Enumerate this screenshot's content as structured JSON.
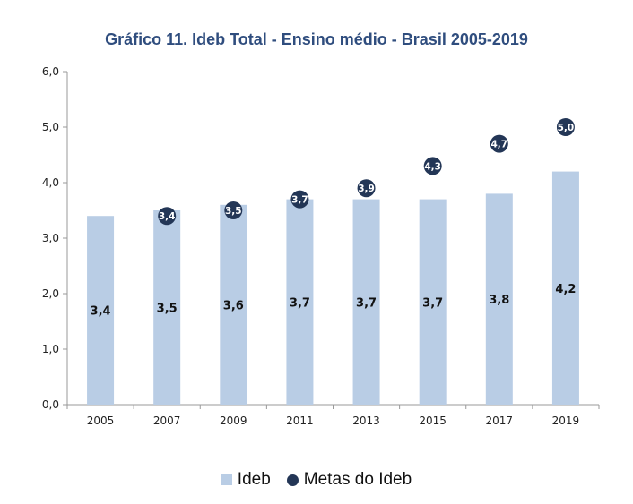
{
  "colors": {
    "bar": "#b9cde5",
    "target_dot": "#233656",
    "title": "#2f4d7e",
    "axis": "#999999",
    "grid": "#d9d9d9"
  },
  "chart_data": {
    "type": "bar",
    "title": "Gráfico 11. Ideb Total - Ensino médio - Brasil 2005-2019",
    "categories": [
      "2005",
      "2007",
      "2009",
      "2011",
      "2013",
      "2015",
      "2017",
      "2019"
    ],
    "series": [
      {
        "name": "Ideb",
        "kind": "bar",
        "values": [
          3.4,
          3.5,
          3.6,
          3.7,
          3.7,
          3.7,
          3.8,
          4.2
        ],
        "labels": [
          "3,4",
          "3,5",
          "3,6",
          "3,7",
          "3,7",
          "3,7",
          "3,8",
          "4,2"
        ]
      },
      {
        "name": "Metas do Ideb",
        "kind": "marker",
        "values": [
          null,
          3.4,
          3.5,
          3.7,
          3.9,
          4.3,
          4.7,
          5.0
        ],
        "labels": [
          null,
          "3,4",
          "3,5",
          "3,7",
          "3,9",
          "4,3",
          "4,7",
          "5,0"
        ]
      }
    ],
    "ylim": [
      0,
      6
    ],
    "yticks": [
      0,
      1,
      2,
      3,
      4,
      5,
      6
    ],
    "ytick_labels": [
      "0,0",
      "1,0",
      "2,0",
      "3,0",
      "4,0",
      "5,0",
      "6,0"
    ],
    "grid": false,
    "legend": "bottom"
  },
  "legend": {
    "bar_label": "Ideb",
    "dot_label": "Metas do Ideb"
  }
}
